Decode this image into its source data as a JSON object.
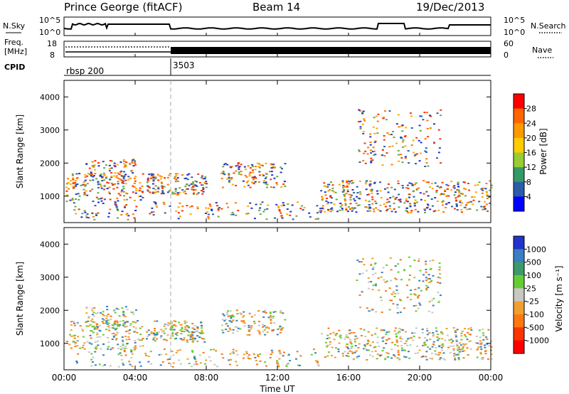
{
  "header": {
    "station": "Prince George (fitACF)",
    "beam": "Beam 14",
    "date": "19/Dec/2013"
  },
  "chart_data": [
    {
      "type": "line",
      "panel": "noise",
      "left_label": "N.Sky",
      "right_label": "N.Search",
      "y_ticks_left": [
        "10^5",
        "10^0"
      ],
      "y_ticks_right": [
        "10^5",
        "10^0"
      ],
      "x_range_hours": [
        0,
        24
      ],
      "note_series_visual": "N.Sky solid, N.Search dotted"
    },
    {
      "type": "line",
      "panel": "frequency",
      "left_label_lines": [
        "Freq.",
        "[MHz]"
      ],
      "left_ticks": [
        "18",
        "8"
      ],
      "right_label": "Nave",
      "right_ticks": [
        "60",
        "0"
      ],
      "step_at_hours": 6.0
    },
    {
      "type": "table",
      "panel": "cpid",
      "label": "CPID",
      "entries": [
        {
          "start_hours": 0.0,
          "text": "rbsp 200"
        },
        {
          "start_hours": 6.0,
          "text": "3503"
        }
      ]
    },
    {
      "type": "heatmap",
      "panel": "power",
      "ylabel": "Slant Range [km]",
      "y_ticks": [
        1000,
        2000,
        3000,
        4000
      ],
      "ylim": [
        200,
        4500
      ],
      "colorbar_label": "Power [dB]",
      "colorbar_ticks": [
        "28",
        "24",
        "20",
        "16",
        "12",
        "8",
        "4"
      ],
      "colorbar_colors": [
        "#ff0000",
        "#ff6600",
        "#ff9900",
        "#ffcc00",
        "#99cc33",
        "#339966",
        "#2a5ca8",
        "#0000ff"
      ]
    },
    {
      "type": "heatmap",
      "panel": "velocity",
      "ylabel": "Slant Range [km]",
      "y_ticks": [
        1000,
        2000,
        3000,
        4000
      ],
      "ylim": [
        200,
        4500
      ],
      "colorbar_label": "Velocity [m s⁻¹]",
      "colorbar_ticks": [
        "1000",
        "500",
        "100",
        "25",
        "-25",
        "-100",
        "-500",
        "-1000"
      ],
      "colorbar_colors": [
        "#2233cc",
        "#3a7fc0",
        "#3d9a6a",
        "#66cc33",
        "#c8c8c0",
        "#f0a030",
        "#ff7711",
        "#ff3300",
        "#ff0000"
      ]
    }
  ],
  "x_axis": {
    "ticks": [
      "00:00",
      "04:00",
      "08:00",
      "12:00",
      "16:00",
      "20:00",
      "00:00"
    ],
    "label": "Time UT"
  }
}
